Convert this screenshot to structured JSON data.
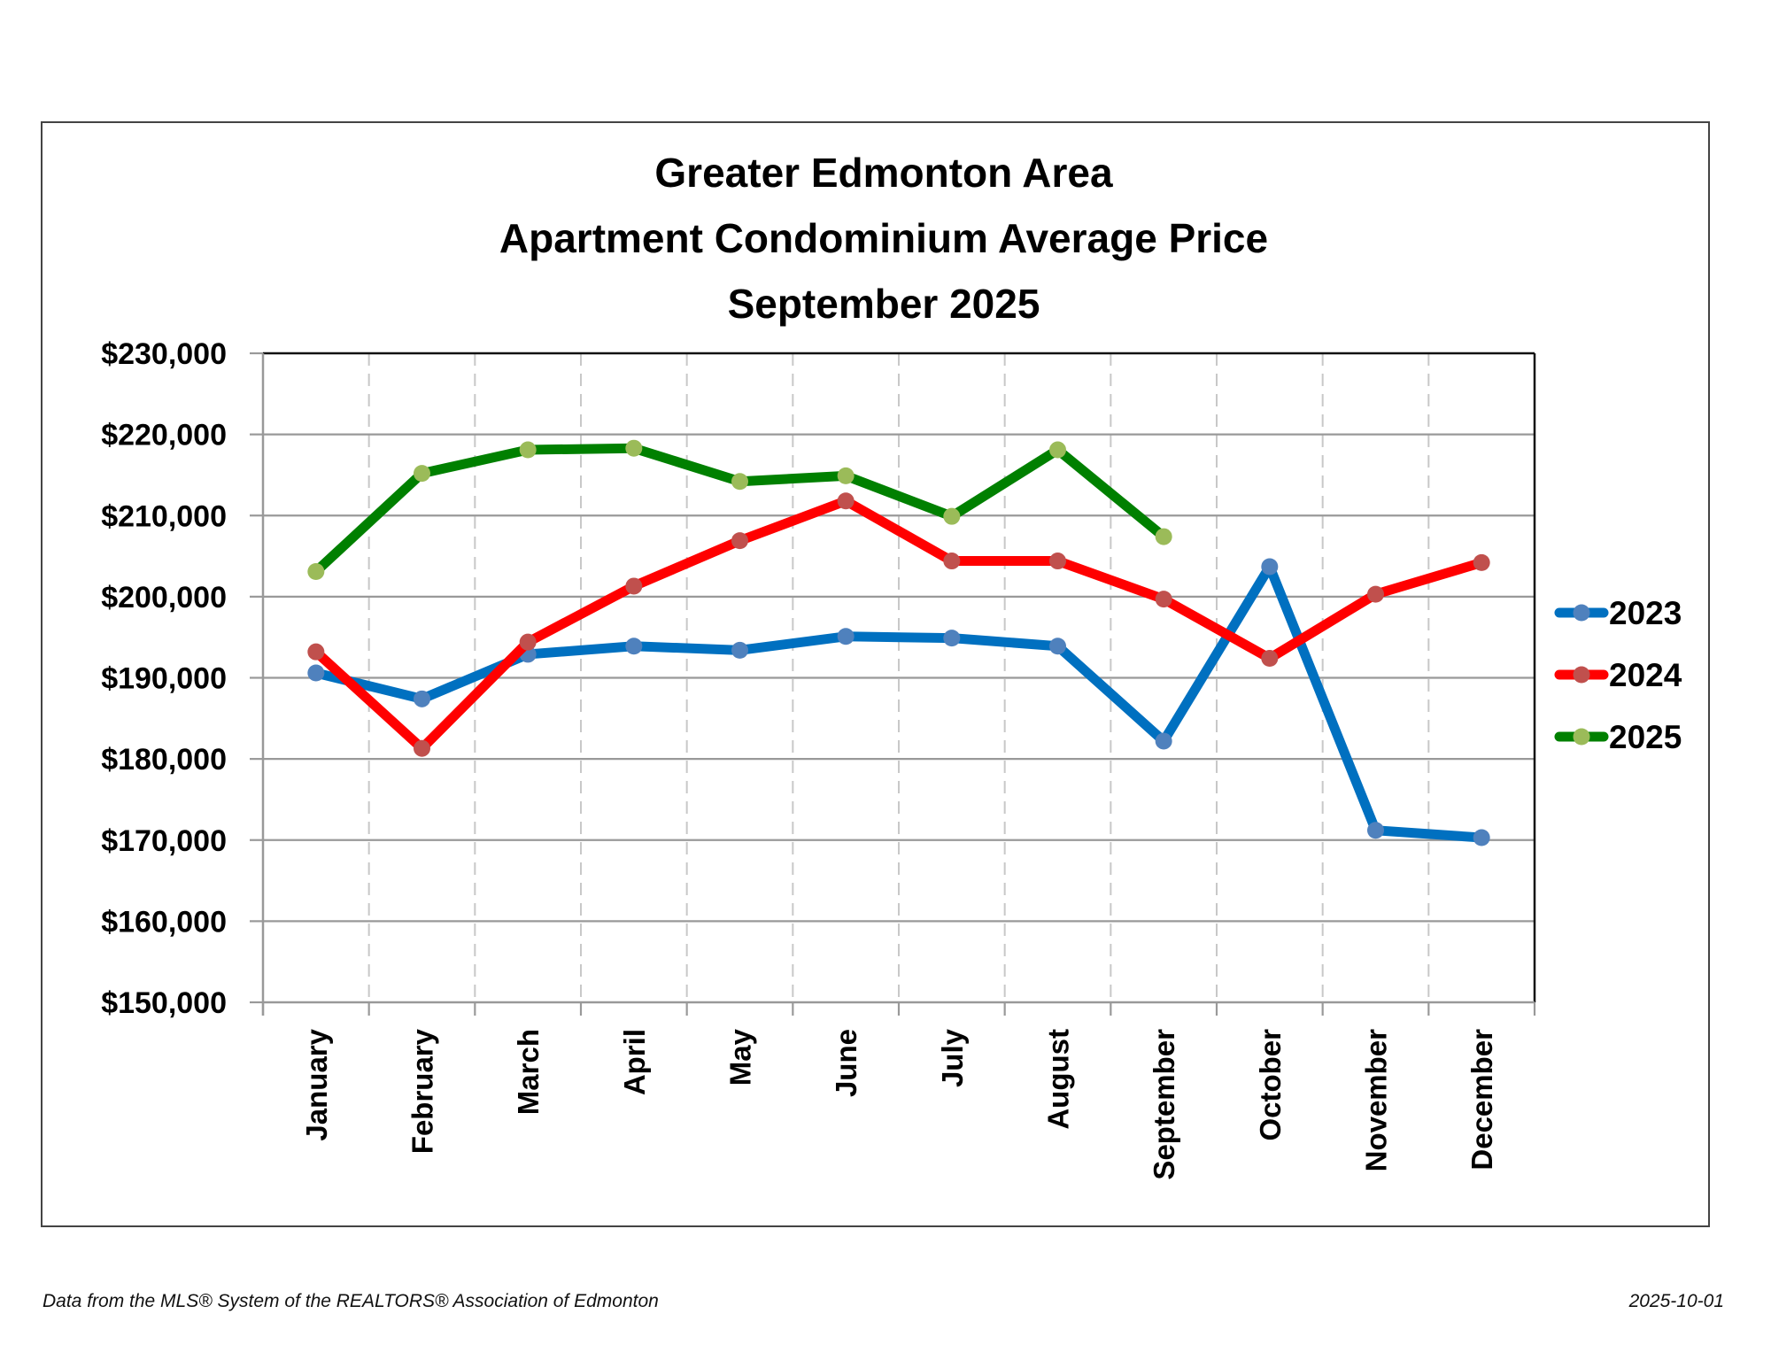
{
  "chart_data": {
    "type": "line",
    "title": [
      "Greater Edmonton Area",
      "Apartment Condominium Average Price",
      "September 2025"
    ],
    "xlabel": "",
    "ylabel": "",
    "categories": [
      "January",
      "February",
      "March",
      "April",
      "May",
      "June",
      "July",
      "August",
      "September",
      "October",
      "November",
      "December"
    ],
    "ylim": [
      150000,
      230000
    ],
    "ytick_step": 10000,
    "ytick_labels": [
      "$150,000",
      "$160,000",
      "$170,000",
      "$180,000",
      "$190,000",
      "$200,000",
      "$210,000",
      "$220,000",
      "$230,000"
    ],
    "grid": {
      "horizontal": "solid",
      "vertical": "dashed"
    },
    "legend_position": "right",
    "series": [
      {
        "name": "2023",
        "line_color": "#0070C0",
        "marker_color": "#4F81BD",
        "values": [
          190600,
          187400,
          192900,
          193900,
          193400,
          195100,
          194900,
          193900,
          182200,
          203700,
          171200,
          170300
        ]
      },
      {
        "name": "2024",
        "line_color": "#FF0000",
        "marker_color": "#C0504D",
        "values": [
          193200,
          181300,
          194400,
          201300,
          206900,
          211800,
          204400,
          204400,
          199700,
          192400,
          200300,
          204200
        ]
      },
      {
        "name": "2025",
        "line_color": "#008000",
        "marker_color": "#9BBB59",
        "values": [
          203100,
          215200,
          218100,
          218300,
          214200,
          214900,
          209900,
          218100,
          207400,
          null,
          null,
          null
        ]
      }
    ]
  },
  "footer": {
    "source": "Data from the MLS® System of the REALTORS® Association of Edmonton",
    "date": "2025-10-01"
  }
}
